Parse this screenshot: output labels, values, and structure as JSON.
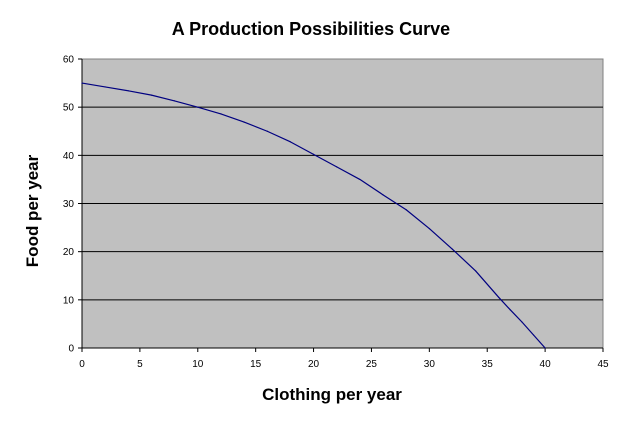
{
  "chart_data": {
    "type": "line",
    "title": "A Production Possibilities Curve",
    "xlabel": "Clothing per year",
    "ylabel": "Food per year",
    "xlim": [
      0,
      45
    ],
    "ylim": [
      0,
      60
    ],
    "x_ticks": [
      "0",
      "5",
      "10",
      "15",
      "20",
      "25",
      "30",
      "35",
      "40",
      "45"
    ],
    "y_ticks": [
      "0",
      "10",
      "20",
      "30",
      "40",
      "50",
      "60"
    ],
    "grid": "horizontal",
    "legend": "none",
    "series": [
      {
        "x": [
          0,
          2,
          4,
          6,
          8,
          10,
          12,
          14,
          16,
          18,
          20,
          22,
          24,
          26,
          28,
          30,
          32,
          34,
          36,
          37,
          38,
          39,
          40
        ],
        "y": [
          55,
          54.2,
          53.4,
          52.5,
          51.3,
          50,
          48.6,
          46.9,
          45,
          42.8,
          40.2,
          37.6,
          35,
          31.8,
          28.7,
          24.8,
          20.5,
          16,
          10.5,
          7.9,
          5.4,
          2.7,
          0
        ],
        "color": "#000080"
      }
    ],
    "colors": {
      "plot_background": "#c0c0c0",
      "gridline": "#000000",
      "line": "#000080"
    }
  }
}
